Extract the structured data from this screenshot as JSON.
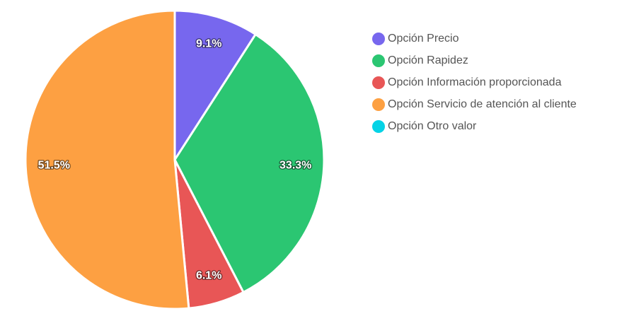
{
  "chart_data": {
    "type": "pie",
    "categories": [
      "Opción Precio",
      "Opción Rapidez",
      "Opción Información proporcionada",
      "Opción Servicio de atención al cliente",
      "Opción Otro valor"
    ],
    "values": [
      9.1,
      33.3,
      6.1,
      51.5,
      0
    ],
    "data_labels": [
      "9.1%",
      "33.3%",
      "6.1%",
      "51.5%",
      ""
    ],
    "colors": [
      "#7767ee",
      "#2bc672",
      "#e85656",
      "#fda042",
      "#05d3e6"
    ],
    "legend_position": "right"
  }
}
